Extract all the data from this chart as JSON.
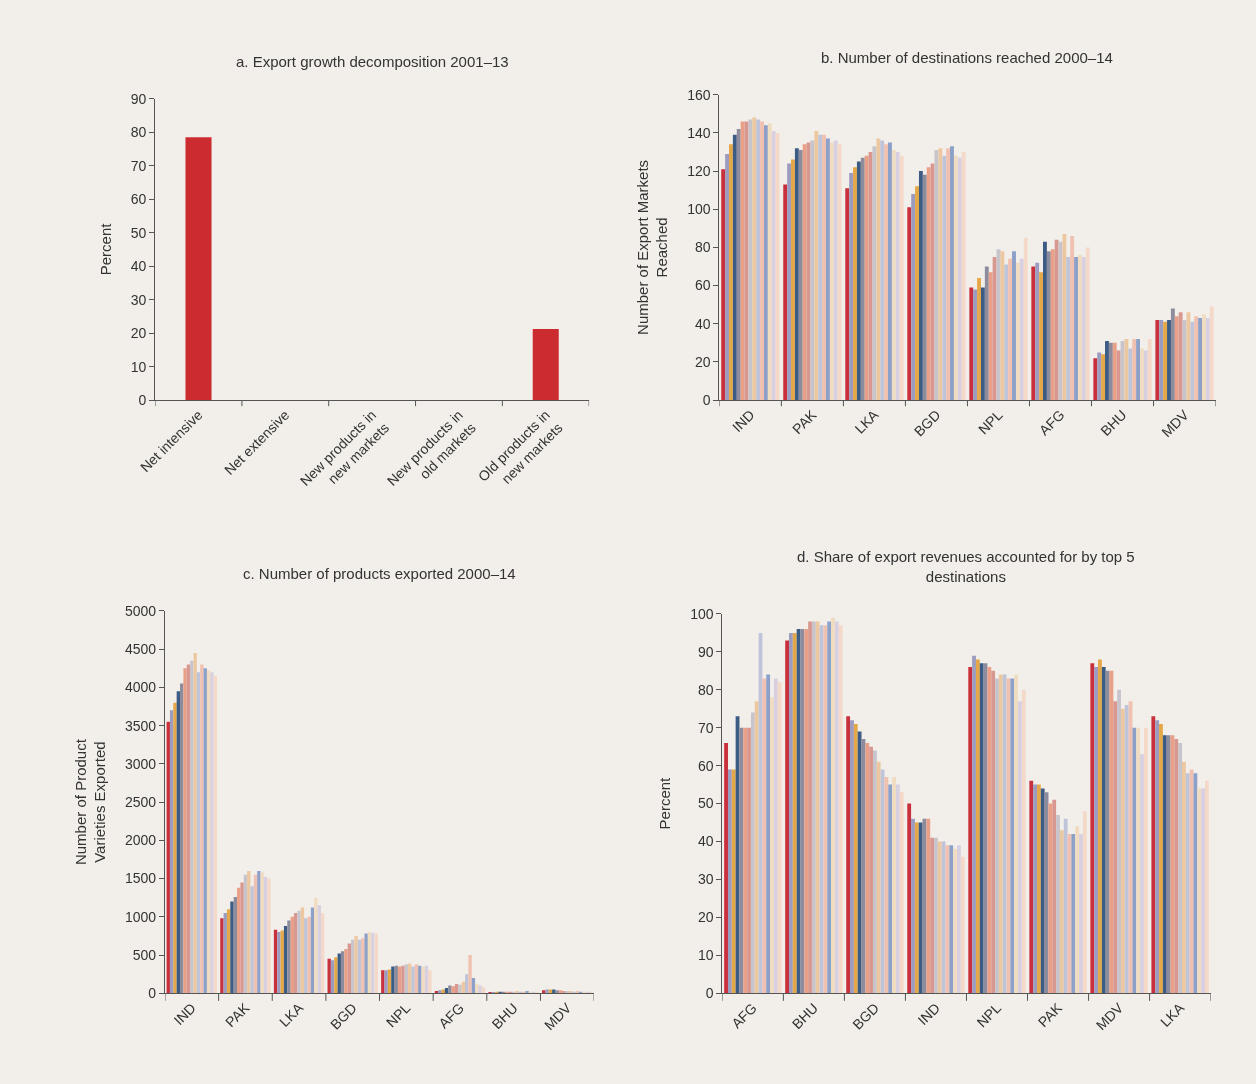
{
  "chart_data": [
    {
      "type": "bar",
      "title": "a. Export growth decomposition 2001–13",
      "ylabel": "Percent",
      "categories": [
        "Net intensive",
        "Net extensive",
        "New products in new markets",
        "New products in old markets",
        "Old products in new markets"
      ],
      "values": [
        78.5,
        0,
        0,
        0,
        21.2
      ],
      "color": "#cc2b2f",
      "ylim": [
        0,
        90
      ],
      "yticks": [
        0,
        10,
        20,
        30,
        40,
        50,
        60,
        70,
        80,
        90
      ],
      "grid": false
    },
    {
      "type": "bar",
      "title": "b. Number of destinations reached 2000–14",
      "ylabel": "Number of Export Markets Reached",
      "categories": [
        "IND",
        "PAK",
        "LKA",
        "BGD",
        "NPL",
        "AFG",
        "BHU",
        "MDV"
      ],
      "series": [
        {
          "color": "#c8303c",
          "values": [
            121,
            113,
            111,
            101,
            59,
            70,
            22,
            42
          ]
        },
        {
          "color": "#9c9cc0",
          "values": [
            129,
            124,
            119,
            108,
            58,
            72,
            25,
            42
          ]
        },
        {
          "color": "#e4a848",
          "values": [
            134,
            126,
            122,
            112,
            64,
            67,
            24,
            41
          ]
        },
        {
          "color": "#3c5c84",
          "values": [
            139,
            132,
            125,
            120,
            59,
            83,
            31,
            42
          ]
        },
        {
          "color": "#8c8c9c",
          "values": [
            142,
            131,
            127,
            118,
            70,
            78,
            30,
            48
          ]
        },
        {
          "color": "#e8a088",
          "values": [
            146,
            134,
            128,
            122,
            67,
            79,
            30,
            44
          ]
        },
        {
          "color": "#d89890",
          "values": [
            146,
            135,
            130,
            124,
            75,
            84,
            26,
            46
          ]
        },
        {
          "color": "#c8c4cc",
          "values": [
            147,
            136,
            133,
            131,
            79,
            83,
            31,
            42
          ]
        },
        {
          "color": "#ecc8a0",
          "values": [
            148,
            141,
            137,
            132,
            78,
            87,
            32,
            46
          ]
        },
        {
          "color": "#c0c4d8",
          "values": [
            147,
            139,
            136,
            128,
            71,
            75,
            27,
            41
          ]
        },
        {
          "color": "#f0c0b0",
          "values": [
            146,
            139,
            134,
            132,
            74,
            86,
            32,
            44
          ]
        },
        {
          "color": "#8ca0c8",
          "values": [
            144,
            137,
            135,
            133,
            78,
            75,
            32,
            43
          ]
        },
        {
          "color": "#f0dcc0",
          "values": [
            145,
            135,
            131,
            128,
            72,
            76,
            27,
            45
          ]
        },
        {
          "color": "#d8d0e0",
          "values": [
            141,
            136,
            130,
            127,
            74,
            75,
            26,
            43
          ]
        },
        {
          "color": "#f4d8c8",
          "values": [
            140,
            134,
            128,
            130,
            85,
            80,
            32,
            49
          ]
        }
      ],
      "ylim": [
        0,
        160
      ],
      "yticks": [
        0,
        20,
        40,
        60,
        80,
        100,
        120,
        140,
        160
      ],
      "grid": false
    },
    {
      "type": "bar",
      "title": "c. Number of products exported 2000–14",
      "ylabel": "Number of Product Varieties Exported",
      "categories": [
        "IND",
        "PAK",
        "LKA",
        "BGD",
        "NPL",
        "AFG",
        "BHU",
        "MDV"
      ],
      "series": [
        {
          "color": "#c8303c",
          "values": [
            3550,
            980,
            830,
            450,
            300,
            30,
            10,
            40
          ]
        },
        {
          "color": "#9c9cc0",
          "values": [
            3700,
            1050,
            800,
            430,
            300,
            40,
            10,
            50
          ]
        },
        {
          "color": "#e4a848",
          "values": [
            3800,
            1100,
            820,
            470,
            310,
            50,
            20,
            50
          ]
        },
        {
          "color": "#3c5c84",
          "values": [
            3950,
            1200,
            880,
            520,
            350,
            70,
            20,
            50
          ]
        },
        {
          "color": "#8c8c9c",
          "values": [
            4050,
            1260,
            950,
            550,
            360,
            100,
            20,
            40
          ]
        },
        {
          "color": "#e8a088",
          "values": [
            4250,
            1380,
            1000,
            580,
            350,
            90,
            20,
            40
          ]
        },
        {
          "color": "#d89890",
          "values": [
            4300,
            1450,
            1050,
            650,
            360,
            120,
            20,
            30
          ]
        },
        {
          "color": "#c8c4cc",
          "values": [
            4350,
            1550,
            1080,
            700,
            380,
            110,
            20,
            30
          ]
        },
        {
          "color": "#ecc8a0",
          "values": [
            4450,
            1600,
            1120,
            750,
            390,
            150,
            30,
            30
          ]
        },
        {
          "color": "#c0c4d8",
          "values": [
            4200,
            1400,
            980,
            700,
            350,
            250,
            20,
            20
          ]
        },
        {
          "color": "#f0c0b0",
          "values": [
            4300,
            1550,
            1000,
            720,
            380,
            500,
            20,
            30
          ]
        },
        {
          "color": "#8ca0c8",
          "values": [
            4250,
            1600,
            1120,
            780,
            360,
            200,
            30,
            20
          ]
        },
        {
          "color": "#f0dcc0",
          "values": [
            4220,
            1580,
            1250,
            800,
            350,
            120,
            20,
            20
          ]
        },
        {
          "color": "#d8d0e0",
          "values": [
            4200,
            1520,
            1150,
            790,
            360,
            100,
            20,
            20
          ]
        },
        {
          "color": "#f4d8c8",
          "values": [
            4150,
            1500,
            1050,
            780,
            300,
            80,
            20,
            20
          ]
        }
      ],
      "ylim": [
        0,
        5000
      ],
      "yticks": [
        0,
        500,
        1000,
        1500,
        2000,
        2500,
        3000,
        3500,
        4000,
        4500,
        5000
      ],
      "grid": false
    },
    {
      "type": "bar",
      "title": "d. Share of export revenues accounted for by top 5 destinations",
      "ylabel": "Percent",
      "categories": [
        "AFG",
        "BHU",
        "BGD",
        "IND",
        "NPL",
        "PAK",
        "MDV",
        "LKA"
      ],
      "series": [
        {
          "color": "#c8303c",
          "values": [
            66,
            93,
            73,
            50,
            86,
            56,
            87,
            73
          ]
        },
        {
          "color": "#9c9cc0",
          "values": [
            59,
            95,
            72,
            46,
            89,
            55,
            86,
            72
          ]
        },
        {
          "color": "#e4a848",
          "values": [
            59,
            95,
            71,
            45,
            88,
            55,
            88,
            71
          ]
        },
        {
          "color": "#3c5c84",
          "values": [
            73,
            96,
            69,
            45,
            87,
            54,
            86,
            68
          ]
        },
        {
          "color": "#8c8c9c",
          "values": [
            70,
            96,
            67,
            46,
            87,
            53,
            85,
            68
          ]
        },
        {
          "color": "#e8a088",
          "values": [
            70,
            96,
            66,
            46,
            86,
            50,
            85,
            68
          ]
        },
        {
          "color": "#d89890",
          "values": [
            70,
            98,
            65,
            41,
            85,
            51,
            77,
            67
          ]
        },
        {
          "color": "#c8c4cc",
          "values": [
            74,
            98,
            64,
            41,
            83,
            47,
            80,
            66
          ]
        },
        {
          "color": "#ecc8a0",
          "values": [
            77,
            98,
            61,
            40,
            84,
            43,
            75,
            61
          ]
        },
        {
          "color": "#c0c4d8",
          "values": [
            95,
            97,
            59,
            40,
            84,
            46,
            76,
            58
          ]
        },
        {
          "color": "#f0c0b0",
          "values": [
            83,
            97,
            57,
            39,
            83,
            42,
            77,
            59
          ]
        },
        {
          "color": "#8ca0c8",
          "values": [
            84,
            98,
            55,
            39,
            83,
            42,
            70,
            58
          ]
        },
        {
          "color": "#f0dcc0",
          "values": [
            78,
            99,
            57,
            38,
            84,
            44,
            70,
            54
          ]
        },
        {
          "color": "#d8d0e0",
          "values": [
            83,
            98,
            55,
            39,
            77,
            42,
            63,
            54
          ]
        },
        {
          "color": "#f4d8c8",
          "values": [
            82,
            97,
            53,
            36,
            80,
            48,
            70,
            56
          ]
        }
      ],
      "ylim": [
        0,
        100
      ],
      "yticks": [
        0,
        10,
        20,
        30,
        40,
        50,
        60,
        70,
        80,
        90,
        100
      ],
      "grid": false
    }
  ]
}
